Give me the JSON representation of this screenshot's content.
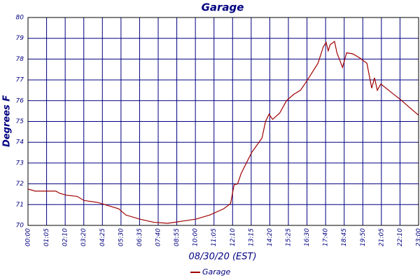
{
  "chart_data": {
    "type": "line",
    "title": "Garage",
    "xlabel": "08/30/20 (EST)",
    "ylabel": "Degrees F",
    "x": [
      0,
      0.38,
      1.5,
      1.69,
      2.07,
      2.63,
      3.01,
      3.76,
      4.13,
      4.88,
      5.26,
      6.01,
      6.76,
      7.51,
      8.26,
      9.02,
      9.77,
      10.52,
      10.89,
      11.08,
      11.27,
      11.46,
      12.02,
      12.58,
      12.77,
      12.96,
      13.15,
      13.53,
      13.9,
      14.28,
      14.65,
      15.03,
      15.59,
      15.88,
      16.03,
      16.14,
      16.25,
      16.48,
      16.61,
      16.91,
      17.13,
      17.47,
      17.84,
      18.22,
      18.48,
      18.63,
      18.78,
      18.97,
      19.53,
      20.1,
      20.47,
      21
    ],
    "series": [
      {
        "name": "Garage",
        "color": "#a00000",
        "values": [
          71.75,
          71.65,
          71.65,
          71.55,
          71.45,
          71.4,
          71.2,
          71.1,
          71.0,
          70.8,
          70.5,
          70.3,
          70.15,
          70.1,
          70.2,
          70.3,
          70.5,
          70.8,
          71.05,
          71.95,
          72.0,
          72.5,
          73.5,
          74.2,
          75.0,
          75.35,
          75.1,
          75.4,
          76.0,
          76.3,
          76.5,
          77.0,
          77.8,
          78.6,
          78.8,
          78.4,
          78.7,
          78.85,
          78.3,
          77.6,
          78.3,
          78.25,
          78.05,
          77.8,
          76.6,
          77.1,
          76.5,
          76.8,
          76.4,
          76.0,
          75.7,
          75.3
        ]
      }
    ],
    "xlim": [
      0,
      21
    ],
    "xticks": [
      {
        "value": 0,
        "label": "00:00"
      },
      {
        "value": 1,
        "label": "01:05"
      },
      {
        "value": 2,
        "label": "02:10"
      },
      {
        "value": 3,
        "label": "03:20"
      },
      {
        "value": 4,
        "label": "04:25"
      },
      {
        "value": 5,
        "label": "05:30"
      },
      {
        "value": 6,
        "label": "06:35"
      },
      {
        "value": 7,
        "label": "07:40"
      },
      {
        "value": 8,
        "label": "08:55"
      },
      {
        "value": 9,
        "label": "10:00"
      },
      {
        "value": 10,
        "label": "11:05"
      },
      {
        "value": 11,
        "label": "12:10"
      },
      {
        "value": 12,
        "label": "13:15"
      },
      {
        "value": 13,
        "label": "14:20"
      },
      {
        "value": 14,
        "label": "15:25"
      },
      {
        "value": 15,
        "label": "16:30"
      },
      {
        "value": 16,
        "label": "17:40"
      },
      {
        "value": 17,
        "label": "18:45"
      },
      {
        "value": 18,
        "label": "19:50"
      },
      {
        "value": 19,
        "label": "21:05"
      },
      {
        "value": 20,
        "label": "22:10"
      },
      {
        "value": 21,
        "label": "23:00"
      }
    ],
    "ylim": [
      70,
      80
    ],
    "yticks": [
      70,
      71,
      72,
      73,
      74,
      75,
      76,
      77,
      78,
      79,
      80
    ],
    "grid": true,
    "grid_color": "#000080",
    "legend": "bottom"
  }
}
